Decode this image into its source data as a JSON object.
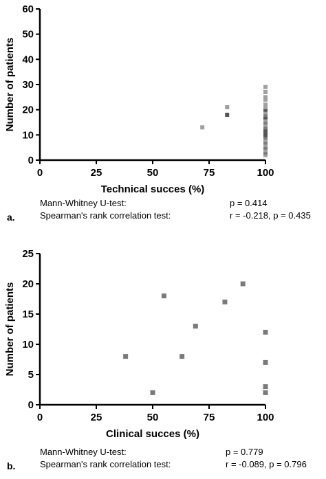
{
  "colors": {
    "marker": "#7a7a7a",
    "marker_light": "#a0a0a0",
    "marker_dark": "#555555",
    "axis": "#000000"
  },
  "chart_data": [
    {
      "type": "scatter",
      "panel": "a.",
      "xlabel": "Technical succes (%)",
      "ylabel": "Number of patients",
      "xlim": [
        0,
        100
      ],
      "ylim": [
        0,
        60
      ],
      "x_ticks": [
        0,
        25,
        50,
        75,
        100
      ],
      "y_ticks": [
        0,
        10,
        20,
        30,
        40,
        50,
        60
      ],
      "points": [
        {
          "x": 72,
          "y": 13,
          "shade": "light"
        },
        {
          "x": 83,
          "y": 21,
          "shade": "light"
        },
        {
          "x": 83,
          "y": 18,
          "shade": "dark"
        },
        {
          "x": 100,
          "y": 2,
          "shade": "light"
        },
        {
          "x": 100,
          "y": 3,
          "shade": "normal"
        },
        {
          "x": 100,
          "y": 4,
          "shade": "light"
        },
        {
          "x": 100,
          "y": 5,
          "shade": "normal"
        },
        {
          "x": 100,
          "y": 6,
          "shade": "light"
        },
        {
          "x": 100,
          "y": 7,
          "shade": "normal"
        },
        {
          "x": 100,
          "y": 8,
          "shade": "light"
        },
        {
          "x": 100,
          "y": 9,
          "shade": "normal"
        },
        {
          "x": 100,
          "y": 10,
          "shade": "dark"
        },
        {
          "x": 100,
          "y": 11,
          "shade": "dark"
        },
        {
          "x": 100,
          "y": 12,
          "shade": "dark"
        },
        {
          "x": 100,
          "y": 13,
          "shade": "normal"
        },
        {
          "x": 100,
          "y": 14,
          "shade": "light"
        },
        {
          "x": 100,
          "y": 15,
          "shade": "normal"
        },
        {
          "x": 100,
          "y": 16,
          "shade": "light"
        },
        {
          "x": 100,
          "y": 17,
          "shade": "dark"
        },
        {
          "x": 100,
          "y": 18,
          "shade": "normal"
        },
        {
          "x": 100,
          "y": 19,
          "shade": "light"
        },
        {
          "x": 100,
          "y": 20,
          "shade": "dark"
        },
        {
          "x": 100,
          "y": 21,
          "shade": "light"
        },
        {
          "x": 100,
          "y": 22,
          "shade": "light"
        },
        {
          "x": 100,
          "y": 24,
          "shade": "light"
        },
        {
          "x": 100,
          "y": 25,
          "shade": "light"
        },
        {
          "x": 100,
          "y": 27,
          "shade": "light"
        },
        {
          "x": 100,
          "y": 29,
          "shade": "light"
        }
      ],
      "stats": [
        {
          "test": "Mann-Whitney U-test:",
          "result": "p = 0.414"
        },
        {
          "test": "Spearman's rank correlation test:",
          "result": "r = -0.218, p = 0.435"
        }
      ]
    },
    {
      "type": "scatter",
      "panel": "b.",
      "xlabel": "Clinical succes (%)",
      "ylabel": "Number of patients",
      "xlim": [
        0,
        100
      ],
      "ylim": [
        0,
        25
      ],
      "x_ticks": [
        0,
        25,
        50,
        75,
        100
      ],
      "y_ticks": [
        0,
        5,
        10,
        15,
        20,
        25
      ],
      "points": [
        {
          "x": 38,
          "y": 8,
          "shade": "normal"
        },
        {
          "x": 50,
          "y": 2,
          "shade": "normal"
        },
        {
          "x": 55,
          "y": 18,
          "shade": "normal"
        },
        {
          "x": 63,
          "y": 8,
          "shade": "normal"
        },
        {
          "x": 69,
          "y": 13,
          "shade": "normal"
        },
        {
          "x": 82,
          "y": 17,
          "shade": "normal"
        },
        {
          "x": 90,
          "y": 20,
          "shade": "normal"
        },
        {
          "x": 100,
          "y": 12,
          "shade": "normal"
        },
        {
          "x": 100,
          "y": 7,
          "shade": "normal"
        },
        {
          "x": 100,
          "y": 3,
          "shade": "normal"
        },
        {
          "x": 100,
          "y": 2,
          "shade": "normal"
        }
      ],
      "stats": [
        {
          "test": "Mann-Whitney U-test:",
          "result": "p = 0.779"
        },
        {
          "test": "Spearman's rank correlation test:",
          "result": "r = -0.089, p = 0.796"
        }
      ]
    }
  ]
}
